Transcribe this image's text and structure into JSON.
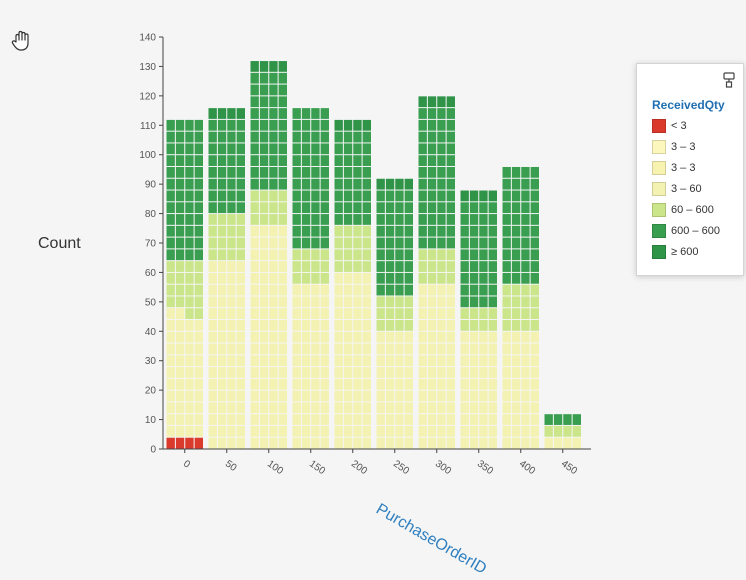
{
  "chart_data": {
    "type": "bar",
    "subtype": "stacked-waffle-histogram",
    "xlabel": "PurchaseOrderID",
    "ylabel": "Count",
    "ylim": [
      0,
      140
    ],
    "yticks": [
      0,
      10,
      20,
      30,
      40,
      50,
      60,
      70,
      80,
      90,
      100,
      110,
      120,
      130,
      140
    ],
    "xticks": [
      "0",
      "50",
      "100",
      "150",
      "200",
      "250",
      "300",
      "350",
      "400",
      "450"
    ],
    "legend_title": "ReceivedQty",
    "series": [
      {
        "name": "< 3",
        "color": "#d93a2b",
        "values": [
          4,
          0,
          0,
          0,
          0,
          0,
          0,
          0,
          0,
          0
        ]
      },
      {
        "name": "3 – 3",
        "color": "#fbf7bd",
        "values": [
          0,
          0,
          0,
          0,
          0,
          0,
          0,
          0,
          0,
          0
        ]
      },
      {
        "name": "3 – 3",
        "color": "#f8f2b0",
        "values": [
          0,
          0,
          0,
          0,
          0,
          0,
          0,
          0,
          0,
          0
        ]
      },
      {
        "name": "3 – 60",
        "color": "#f4f2b2",
        "values": [
          42,
          64,
          76,
          56,
          60,
          40,
          56,
          40,
          40,
          4
        ]
      },
      {
        "name": "60 – 600",
        "color": "#cbe58b",
        "values": [
          18,
          16,
          12,
          12,
          16,
          12,
          12,
          8,
          16,
          4
        ]
      },
      {
        "name": "600 – 600",
        "color": "#3a9e51",
        "values": [
          48,
          32,
          40,
          48,
          32,
          36,
          48,
          36,
          40,
          4
        ]
      },
      {
        "name": "≥ 600",
        "color": "#2f9448",
        "values": [
          0,
          4,
          4,
          0,
          4,
          4,
          4,
          4,
          0,
          0
        ]
      }
    ]
  },
  "legend": {
    "title": "ReceivedQty",
    "items": [
      {
        "label": "< 3",
        "color": "#d93a2b"
      },
      {
        "label": "3 – 3",
        "color": "#fbf7bd"
      },
      {
        "label": "3 – 3",
        "color": "#f8f2b0"
      },
      {
        "label": "3 – 60",
        "color": "#f4f2b2"
      },
      {
        "label": "60 – 600",
        "color": "#cbe58b"
      },
      {
        "label": "600 – 600",
        "color": "#3a9e51"
      },
      {
        "label": "≥ 600",
        "color": "#2f9448"
      }
    ]
  },
  "icons": {
    "hand": "hand-pointer-icon",
    "pin": "paint-roller-icon"
  }
}
